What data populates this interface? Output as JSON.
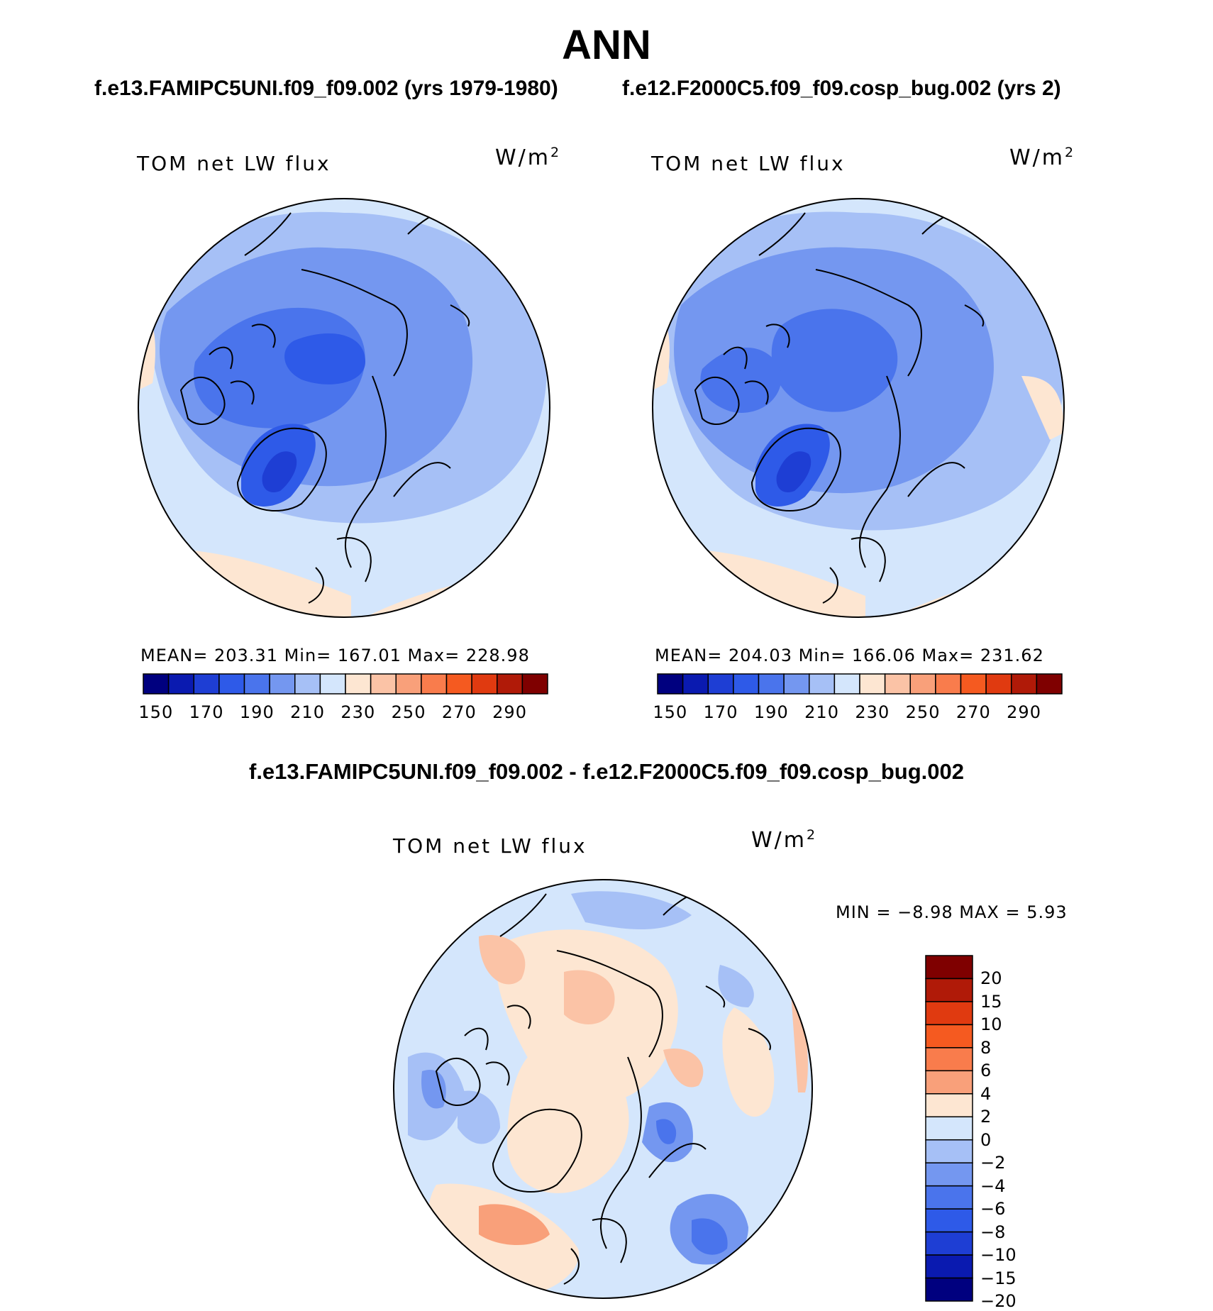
{
  "figure": {
    "title": "ANN",
    "case_left": "f.e13.FAMIPC5UNI.f09_f09.002 (yrs 1979-1980)",
    "case_right": "f.e12.F2000C5.f09_f09.cosp_bug.002 (yrs 2)",
    "diff_title": "f.e13.FAMIPC5UNI.f09_f09.002 - f.e12.F2000C5.f09_f09.cosp_bug.002"
  },
  "panels": [
    {
      "variable": "TOM net LW flux",
      "units_base": "W/m",
      "units_exp": "2",
      "stats": "MEAN= 203.31   Min= 167.01   Max= 228.98"
    },
    {
      "variable": "TOM net LW flux",
      "units_base": "W/m",
      "units_exp": "2",
      "stats": "MEAN= 204.03   Min= 166.06   Max= 231.62"
    }
  ],
  "diff_panel": {
    "variable": "TOM net LW flux",
    "units_base": "W/m",
    "units_exp": "2",
    "stats": "MIN =   −8.98 MAX =     5.93"
  },
  "colorbar_abs": {
    "colors": [
      "#00007f",
      "#0a1ab0",
      "#1e3ed4",
      "#2e5ae8",
      "#4a74ec",
      "#7497f0",
      "#a6c0f6",
      "#d4e6fc",
      "#fde6d2",
      "#fbc3a6",
      "#f9a07a",
      "#f97c4c",
      "#f55a20",
      "#e03a10",
      "#b01a08",
      "#7f0000"
    ],
    "ticks": [
      "150",
      "170",
      "190",
      "210",
      "230",
      "250",
      "270",
      "290"
    ]
  },
  "colorbar_diff": {
    "colors": [
      "#7f0000",
      "#b01a08",
      "#e03a10",
      "#f55a20",
      "#f97c4c",
      "#f9a07a",
      "#fde6d2",
      "#d4e6fc",
      "#a6c0f6",
      "#7497f0",
      "#4a74ec",
      "#2e5ae8",
      "#1e3ed4",
      "#0a1ab0",
      "#00007f"
    ],
    "ticks": [
      "20",
      "15",
      "10",
      "8",
      "6",
      "4",
      "2",
      "0",
      "−2",
      "−4",
      "−6",
      "−8",
      "−10",
      "−15",
      "−20"
    ]
  },
  "map_colors": {
    "bg_abs": "#d4e6fc",
    "c1": "#a6c0f6",
    "c2": "#7497f0",
    "c3": "#4a74ec",
    "c4": "#2e5ae8",
    "c5": "#1e3ed4",
    "warm": "#fde6d2",
    "warm2": "#fbc3a6",
    "warm3": "#f9a07a"
  }
}
